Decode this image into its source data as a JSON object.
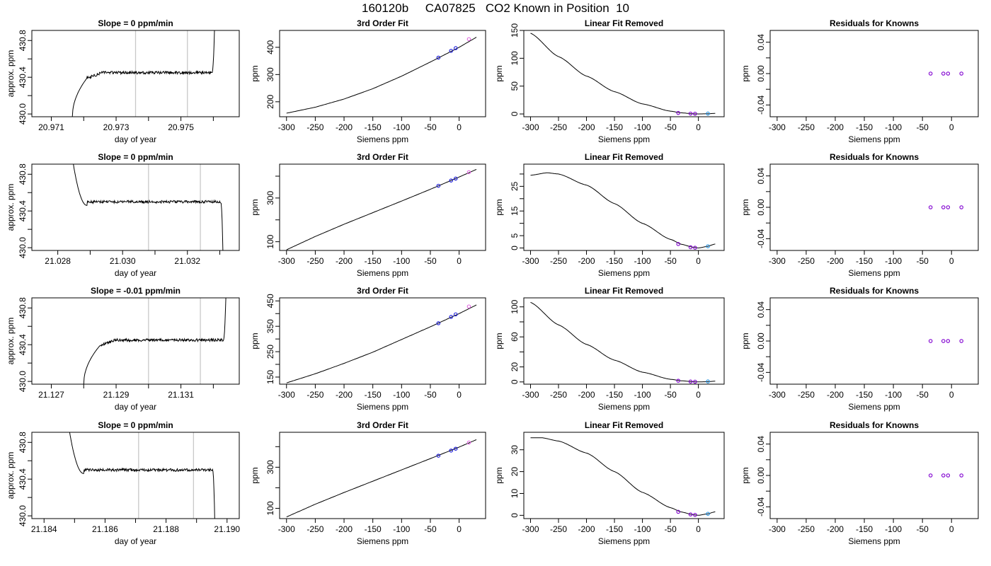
{
  "figure": {
    "title": "160120b     CA07825   CO2 Known in Position  10"
  },
  "chart_data": [
    {
      "type": "line",
      "panel": "trace",
      "row": 1,
      "title": "Slope =  0  ppm/min",
      "xlabel": "day of year",
      "ylabel": "approx. ppm",
      "xlim": [
        20.9704,
        20.9768
      ],
      "ylim": [
        429.97,
        430.91
      ],
      "xticks": [
        20.971,
        20.972,
        20.973,
        20.974,
        20.975,
        20.976
      ],
      "xtick_labels": [
        "20.971",
        "",
        "20.973",
        "",
        "20.975",
        ""
      ],
      "yticks": [
        430.0,
        430.2,
        430.4,
        430.6,
        430.8
      ],
      "ytick_labels": [
        "430.0",
        "",
        "430.4",
        "",
        "430.8"
      ],
      "vlines": [
        20.9736,
        20.9752
      ],
      "trace": {
        "x0": 20.97165,
        "x1": 20.97605,
        "rise": 20.9721,
        "shape": "rise",
        "start": 429.97,
        "plateau": 430.45,
        "end": 431.1
      }
    },
    {
      "type": "scatter",
      "panel": "fit",
      "row": 1,
      "title": "3rd Order Fit",
      "xlabel": "Siemens ppm",
      "ylabel": "ppm",
      "xlim": [
        -312,
        46
      ],
      "ylim": [
        145,
        462
      ],
      "xticks": [
        -300,
        -250,
        -200,
        -150,
        -100,
        -50,
        0
      ],
      "yticks": [
        200,
        300,
        400
      ],
      "ytick_labels": [
        "200",
        "300",
        "400"
      ],
      "curve": {
        "x": [
          -300,
          -250,
          -200,
          -150,
          -100,
          -50,
          0,
          30
        ],
        "y": [
          158,
          180,
          210,
          248,
          294,
          346,
          400,
          437
        ]
      },
      "points": [
        {
          "x": -36,
          "y": 362,
          "color": "#1a1adc"
        },
        {
          "x": -14,
          "y": 387,
          "color": "#1a1adc"
        },
        {
          "x": -6,
          "y": 397,
          "color": "#1a1adc"
        },
        {
          "x": 17,
          "y": 430,
          "color": "#e066e0"
        }
      ]
    },
    {
      "type": "scatter",
      "panel": "linear",
      "row": 1,
      "title": "Linear Fit Removed",
      "xlabel": "Siemens ppm",
      "ylabel": "ppm",
      "xlim": [
        -312,
        46
      ],
      "ylim": [
        -5,
        150
      ],
      "xticks": [
        -300,
        -250,
        -200,
        -150,
        -100,
        -50,
        0
      ],
      "yticks": [
        0,
        50,
        100,
        150
      ],
      "ytick_labels": [
        "0",
        "50",
        "100",
        "150"
      ],
      "curve": {
        "x": [
          -300,
          -250,
          -200,
          -150,
          -100,
          -50,
          -30,
          -10,
          0,
          15,
          30
        ],
        "y": [
          145,
          103,
          68,
          40,
          18,
          5,
          2,
          0.3,
          0,
          0.3,
          1
        ]
      },
      "points": [
        {
          "x": -36,
          "y": 1.8,
          "color": "#8000d0"
        },
        {
          "x": -14,
          "y": 0.6,
          "color": "#8000d0"
        },
        {
          "x": -6,
          "y": 0.4,
          "color": "#8000d0"
        },
        {
          "x": 17,
          "y": 0.7,
          "color": "#2090e0"
        }
      ]
    },
    {
      "type": "scatter",
      "panel": "resid",
      "row": 1,
      "title": "Residuals for Knowns",
      "xlabel": "Siemens ppm",
      "ylabel": "ppm",
      "xlim": [
        -312,
        46
      ],
      "ylim": [
        -0.055,
        0.055
      ],
      "xticks": [
        -300,
        -250,
        -200,
        -150,
        -100,
        -50,
        0
      ],
      "yticks": [
        -0.04,
        -0.02,
        0,
        0.02,
        0.04
      ],
      "ytick_labels": [
        "-0.04",
        "",
        "0.00",
        "",
        "0.04"
      ],
      "points": [
        {
          "x": -36,
          "y": 0,
          "color": "#8000d0"
        },
        {
          "x": -14,
          "y": 0,
          "color": "#8000d0"
        },
        {
          "x": -6,
          "y": 0,
          "color": "#8000d0"
        },
        {
          "x": 17,
          "y": 0,
          "color": "#8000d0"
        }
      ]
    },
    {
      "type": "line",
      "panel": "trace",
      "row": 2,
      "title": "Slope =  0  ppm/min",
      "xlabel": "day of year",
      "ylabel": "approx. ppm",
      "xlim": [
        21.0272,
        21.0336
      ],
      "ylim": [
        429.97,
        430.91
      ],
      "xticks": [
        21.028,
        21.029,
        21.03,
        21.031,
        21.032,
        21.033
      ],
      "xtick_labels": [
        "21.028",
        "",
        "21.030",
        "",
        "21.032",
        ""
      ],
      "yticks": [
        430.0,
        430.2,
        430.4,
        430.6,
        430.8
      ],
      "ytick_labels": [
        "430.0",
        "",
        "430.4",
        "",
        "430.8"
      ],
      "vlines": [
        21.0308,
        21.0324
      ],
      "trace": {
        "x0": 21.0284,
        "x1": 21.0331,
        "rise": 21.0289,
        "shape": "fall",
        "start": 431.1,
        "plateau": 430.5,
        "end": 429.9
      }
    },
    {
      "type": "scatter",
      "panel": "fit",
      "row": 2,
      "title": "3rd Order Fit",
      "xlabel": "Siemens ppm",
      "ylabel": "ppm",
      "xlim": [
        -312,
        46
      ],
      "ylim": [
        60,
        455
      ],
      "xticks": [
        -300,
        -250,
        -200,
        -150,
        -100,
        -50,
        0
      ],
      "yticks": [
        100,
        200,
        300,
        400
      ],
      "ytick_labels": [
        "100",
        "",
        "300",
        ""
      ],
      "curve": {
        "x": [
          -300,
          -250,
          -200,
          -150,
          -100,
          -50,
          0,
          30
        ],
        "y": [
          63,
          124,
          180,
          233,
          286,
          340,
          396,
          431
        ]
      },
      "points": [
        {
          "x": -36,
          "y": 356,
          "color": "#1a1adc"
        },
        {
          "x": -14,
          "y": 380,
          "color": "#1a1adc"
        },
        {
          "x": -6,
          "y": 389,
          "color": "#1a1adc"
        },
        {
          "x": 17,
          "y": 418,
          "color": "#e066e0"
        }
      ]
    },
    {
      "type": "scatter",
      "panel": "linear",
      "row": 2,
      "title": "Linear Fit Removed",
      "xlabel": "Siemens ppm",
      "ylabel": "ppm",
      "xlim": [
        -312,
        46
      ],
      "ylim": [
        -1,
        34
      ],
      "xticks": [
        -300,
        -250,
        -200,
        -150,
        -100,
        -50,
        0
      ],
      "yticks": [
        0,
        5,
        10,
        15,
        20,
        25,
        30
      ],
      "ytick_labels": [
        "0",
        "5",
        "",
        "15",
        "",
        "25",
        ""
      ],
      "curve": {
        "x": [
          -300,
          -270,
          -250,
          -200,
          -150,
          -100,
          -50,
          -30,
          -10,
          0,
          15,
          30
        ],
        "y": [
          29.5,
          30.5,
          30,
          25.5,
          18,
          10,
          3.5,
          1.5,
          0.3,
          0,
          0.6,
          1.6
        ]
      },
      "points": [
        {
          "x": -36,
          "y": 1.6,
          "color": "#8000d0"
        },
        {
          "x": -14,
          "y": 0.3,
          "color": "#8000d0"
        },
        {
          "x": -6,
          "y": 0.1,
          "color": "#8000d0"
        },
        {
          "x": 17,
          "y": 0.7,
          "color": "#2090e0"
        }
      ]
    },
    {
      "type": "scatter",
      "panel": "resid",
      "row": 2,
      "title": "Residuals for Knowns",
      "xlabel": "Siemens ppm",
      "ylabel": "ppm",
      "xlim": [
        -312,
        46
      ],
      "ylim": [
        -0.055,
        0.055
      ],
      "xticks": [
        -300,
        -250,
        -200,
        -150,
        -100,
        -50,
        0
      ],
      "yticks": [
        -0.04,
        -0.02,
        0,
        0.02,
        0.04
      ],
      "ytick_labels": [
        "-0.04",
        "",
        "0.00",
        "",
        "0.04"
      ],
      "points": [
        {
          "x": -36,
          "y": 0,
          "color": "#8000d0"
        },
        {
          "x": -14,
          "y": 0,
          "color": "#8000d0"
        },
        {
          "x": -6,
          "y": 0,
          "color": "#8000d0"
        },
        {
          "x": 17,
          "y": 0,
          "color": "#8000d0"
        }
      ]
    },
    {
      "type": "line",
      "panel": "trace",
      "row": 3,
      "title": "Slope =  -0.01  ppm/min",
      "xlabel": "day of year",
      "ylabel": "approx. ppm",
      "xlim": [
        21.1264,
        21.1328
      ],
      "ylim": [
        429.97,
        430.91
      ],
      "xticks": [
        21.127,
        21.128,
        21.129,
        21.13,
        21.131,
        21.132
      ],
      "xtick_labels": [
        "21.127",
        "",
        "21.129",
        "",
        "21.131",
        ""
      ],
      "yticks": [
        430.0,
        430.2,
        430.4,
        430.6,
        430.8
      ],
      "ytick_labels": [
        "430.0",
        "",
        "430.4",
        "",
        "430.8"
      ],
      "vlines": [
        21.13,
        21.1316
      ],
      "trace": {
        "x0": 21.128,
        "x1": 21.1324,
        "rise": 21.1285,
        "shape": "rise",
        "start": 429.97,
        "plateau": 430.45,
        "end": 431.1
      }
    },
    {
      "type": "scatter",
      "panel": "fit",
      "row": 3,
      "title": "3rd Order Fit",
      "xlabel": "Siemens ppm",
      "ylabel": "ppm",
      "xlim": [
        -312,
        46
      ],
      "ylim": [
        122,
        462
      ],
      "xticks": [
        -300,
        -250,
        -200,
        -150,
        -100,
        -50,
        0
      ],
      "yticks": [
        150,
        200,
        250,
        300,
        350,
        400,
        450
      ],
      "ytick_labels": [
        "150",
        "",
        "250",
        "",
        "350",
        "",
        "450"
      ],
      "curve": {
        "x": [
          -300,
          -250,
          -200,
          -150,
          -100,
          -50,
          0,
          30
        ],
        "y": [
          127,
          163,
          204,
          248,
          298,
          348,
          400,
          434
        ]
      },
      "points": [
        {
          "x": -36,
          "y": 362,
          "color": "#1a1adc"
        },
        {
          "x": -14,
          "y": 387,
          "color": "#1a1adc"
        },
        {
          "x": -6,
          "y": 397,
          "color": "#1a1adc"
        },
        {
          "x": 17,
          "y": 428,
          "color": "#e066e0"
        }
      ]
    },
    {
      "type": "scatter",
      "panel": "linear",
      "row": 3,
      "title": "Linear Fit Removed",
      "xlabel": "Siemens ppm",
      "ylabel": "ppm",
      "xlim": [
        -312,
        46
      ],
      "ylim": [
        -3,
        112
      ],
      "xticks": [
        -300,
        -250,
        -200,
        -150,
        -100,
        -50,
        0
      ],
      "yticks": [
        0,
        20,
        40,
        60,
        80,
        100
      ],
      "ytick_labels": [
        "0",
        "20",
        "",
        "60",
        "",
        "100"
      ],
      "curve": {
        "x": [
          -300,
          -250,
          -200,
          -150,
          -100,
          -50,
          -30,
          -10,
          0,
          15,
          30
        ],
        "y": [
          106,
          76,
          50,
          29,
          13,
          3.5,
          1.5,
          0.3,
          0,
          0.3,
          1
        ]
      },
      "points": [
        {
          "x": -36,
          "y": 1.6,
          "color": "#8000d0"
        },
        {
          "x": -14,
          "y": 0.5,
          "color": "#8000d0"
        },
        {
          "x": -6,
          "y": 0.3,
          "color": "#8000d0"
        },
        {
          "x": 17,
          "y": 0.6,
          "color": "#2090e0"
        }
      ]
    },
    {
      "type": "scatter",
      "panel": "resid",
      "row": 3,
      "title": "Residuals for Knowns",
      "xlabel": "Siemens ppm",
      "ylabel": "ppm",
      "xlim": [
        -312,
        46
      ],
      "ylim": [
        -0.055,
        0.055
      ],
      "xticks": [
        -300,
        -250,
        -200,
        -150,
        -100,
        -50,
        0
      ],
      "yticks": [
        -0.04,
        -0.02,
        0,
        0.02,
        0.04
      ],
      "ytick_labels": [
        "-0.04",
        "",
        "0.00",
        "",
        "0.04"
      ],
      "points": [
        {
          "x": -36,
          "y": 0,
          "color": "#8000d0"
        },
        {
          "x": -14,
          "y": 0,
          "color": "#8000d0"
        },
        {
          "x": -6,
          "y": 0,
          "color": "#8000d0"
        },
        {
          "x": 17,
          "y": 0,
          "color": "#8000d0"
        }
      ]
    },
    {
      "type": "line",
      "panel": "trace",
      "row": 4,
      "title": "Slope =  0  ppm/min",
      "xlabel": "day of year",
      "ylabel": "approx. ppm",
      "xlim": [
        21.1836,
        21.1904
      ],
      "ylim": [
        429.97,
        430.91
      ],
      "xticks": [
        21.184,
        21.185,
        21.186,
        21.187,
        21.188,
        21.189,
        21.19
      ],
      "xtick_labels": [
        "21.184",
        "",
        "21.186",
        "",
        "21.188",
        "",
        "21.190"
      ],
      "yticks": [
        430.0,
        430.2,
        430.4,
        430.6,
        430.8
      ],
      "ytick_labels": [
        "430.0",
        "",
        "430.4",
        "",
        "430.8"
      ],
      "vlines": [
        21.1871,
        21.1889
      ],
      "trace": {
        "x0": 21.18475,
        "x1": 21.1896,
        "rise": 21.1853,
        "shape": "fall",
        "start": 431.1,
        "plateau": 430.5,
        "end": 429.9
      }
    },
    {
      "type": "scatter",
      "panel": "fit",
      "row": 4,
      "title": "3rd Order Fit",
      "xlabel": "Siemens ppm",
      "ylabel": "ppm",
      "xlim": [
        -312,
        46
      ],
      "ylim": [
        50,
        470
      ],
      "xticks": [
        -300,
        -250,
        -200,
        -150,
        -100,
        -50,
        0
      ],
      "yticks": [
        100,
        200,
        300,
        400
      ],
      "ytick_labels": [
        "100",
        "",
        "300",
        ""
      ],
      "curve": {
        "x": [
          -300,
          -250,
          -200,
          -150,
          -100,
          -50,
          0,
          30
        ],
        "y": [
          58,
          120,
          177,
          232,
          287,
          342,
          398,
          434
        ]
      },
      "points": [
        {
          "x": -36,
          "y": 356,
          "color": "#1a1adc"
        },
        {
          "x": -14,
          "y": 381,
          "color": "#1a1adc"
        },
        {
          "x": -6,
          "y": 390,
          "color": "#1a1adc"
        },
        {
          "x": 17,
          "y": 420,
          "color": "#e066e0"
        }
      ]
    },
    {
      "type": "scatter",
      "panel": "linear",
      "row": 4,
      "title": "Linear Fit Removed",
      "xlabel": "Siemens ppm",
      "ylabel": "ppm",
      "xlim": [
        -312,
        46
      ],
      "ylim": [
        -1.5,
        38
      ],
      "xticks": [
        -300,
        -250,
        -200,
        -150,
        -100,
        -50,
        0
      ],
      "yticks": [
        0,
        10,
        20,
        30
      ],
      "ytick_labels": [
        "0",
        "10",
        "20",
        "30"
      ],
      "curve": {
        "x": [
          -300,
          -280,
          -250,
          -200,
          -150,
          -100,
          -50,
          -30,
          -10,
          0,
          15,
          30
        ],
        "y": [
          35.5,
          35.5,
          34,
          28.5,
          20,
          10.5,
          3.5,
          1.5,
          0.3,
          0,
          0.6,
          1.6
        ]
      },
      "points": [
        {
          "x": -36,
          "y": 1.6,
          "color": "#8000d0"
        },
        {
          "x": -14,
          "y": 0.4,
          "color": "#8000d0"
        },
        {
          "x": -6,
          "y": 0.2,
          "color": "#8000d0"
        },
        {
          "x": 17,
          "y": 0.7,
          "color": "#2090e0"
        }
      ]
    },
    {
      "type": "scatter",
      "panel": "resid",
      "row": 4,
      "title": "Residuals for Knowns",
      "xlabel": "Siemens ppm",
      "ylabel": "ppm",
      "xlim": [
        -312,
        46
      ],
      "ylim": [
        -0.055,
        0.055
      ],
      "xticks": [
        -300,
        -250,
        -200,
        -150,
        -100,
        -50,
        0
      ],
      "yticks": [
        -0.04,
        -0.02,
        0,
        0.02,
        0.04
      ],
      "ytick_labels": [
        "-0.04",
        "",
        "0.00",
        "",
        "0.04"
      ],
      "points": [
        {
          "x": -36,
          "y": 0,
          "color": "#8000d0"
        },
        {
          "x": -14,
          "y": 0,
          "color": "#8000d0"
        },
        {
          "x": -6,
          "y": 0,
          "color": "#8000d0"
        },
        {
          "x": 17,
          "y": 0,
          "color": "#8000d0"
        }
      ]
    }
  ]
}
